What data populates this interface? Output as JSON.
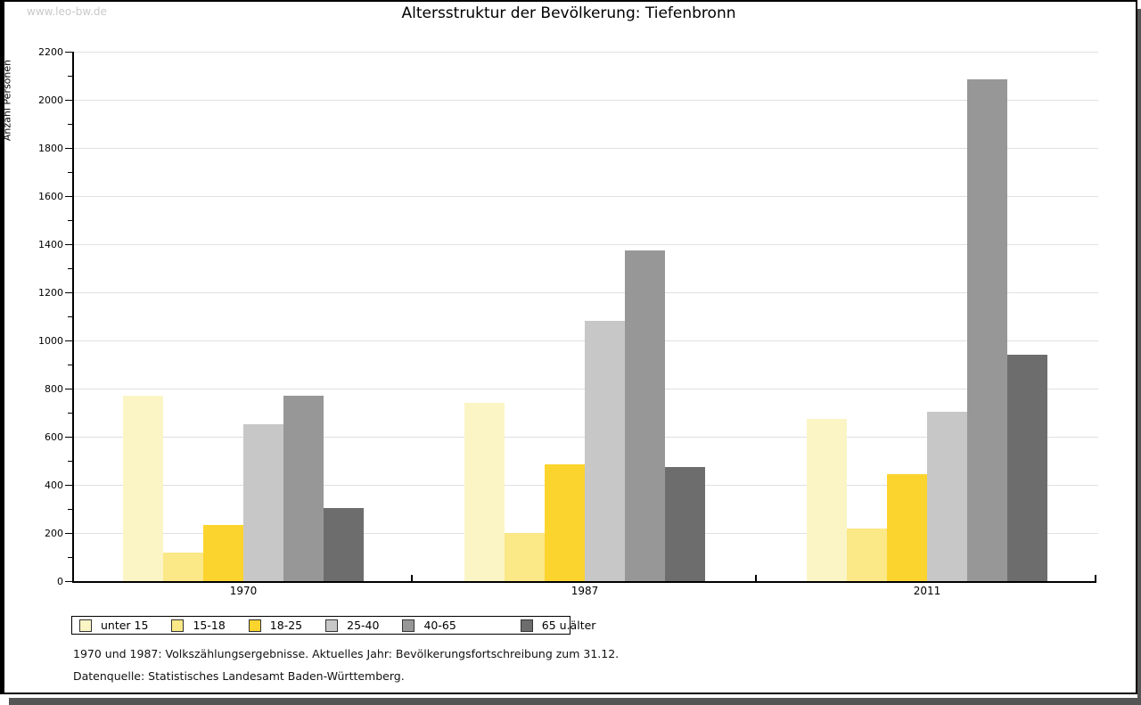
{
  "watermark": "www.leo-bw.de",
  "title": "Altersstruktur der Bevölkerung: Tiefenbronn",
  "chart_data": {
    "type": "bar",
    "title": "Altersstruktur der Bevölkerung: Tiefenbronn",
    "xlabel": "",
    "ylabel": "Anzahl Personen",
    "categories": [
      "1970",
      "1987",
      "2011"
    ],
    "series": [
      {
        "name": "unter 15",
        "color": "#FBF5C6",
        "values": [
          770,
          740,
          675
        ]
      },
      {
        "name": "15-18",
        "color": "#FBE886",
        "values": [
          120,
          200,
          220
        ]
      },
      {
        "name": "18-25",
        "color": "#FCD42E",
        "values": [
          235,
          485,
          445
        ]
      },
      {
        "name": "25-40",
        "color": "#C7C7C7",
        "values": [
          650,
          1080,
          705
        ]
      },
      {
        "name": "40-65",
        "color": "#979797",
        "values": [
          770,
          1375,
          2085
        ]
      },
      {
        "name": "65 u.älter",
        "color": "#6D6D6D",
        "values": [
          305,
          475,
          940
        ]
      }
    ],
    "ylim": [
      0,
      2200
    ],
    "ytick_step": 200,
    "yminor_step": 100,
    "grid": true,
    "legend_position": "bottom"
  },
  "footer": {
    "line1": "1970 und 1987: Volkszählungsergebnisse. Aktuelles Jahr: Bevölkerungsfortschreibung zum 31.12.",
    "line2": "Datenquelle: Statistisches Landesamt Baden-Württemberg."
  },
  "colors": {
    "axis": "#000000",
    "grid": "#e0e0e0",
    "watermark": "#c9c9c9",
    "shadow": "#555555"
  }
}
